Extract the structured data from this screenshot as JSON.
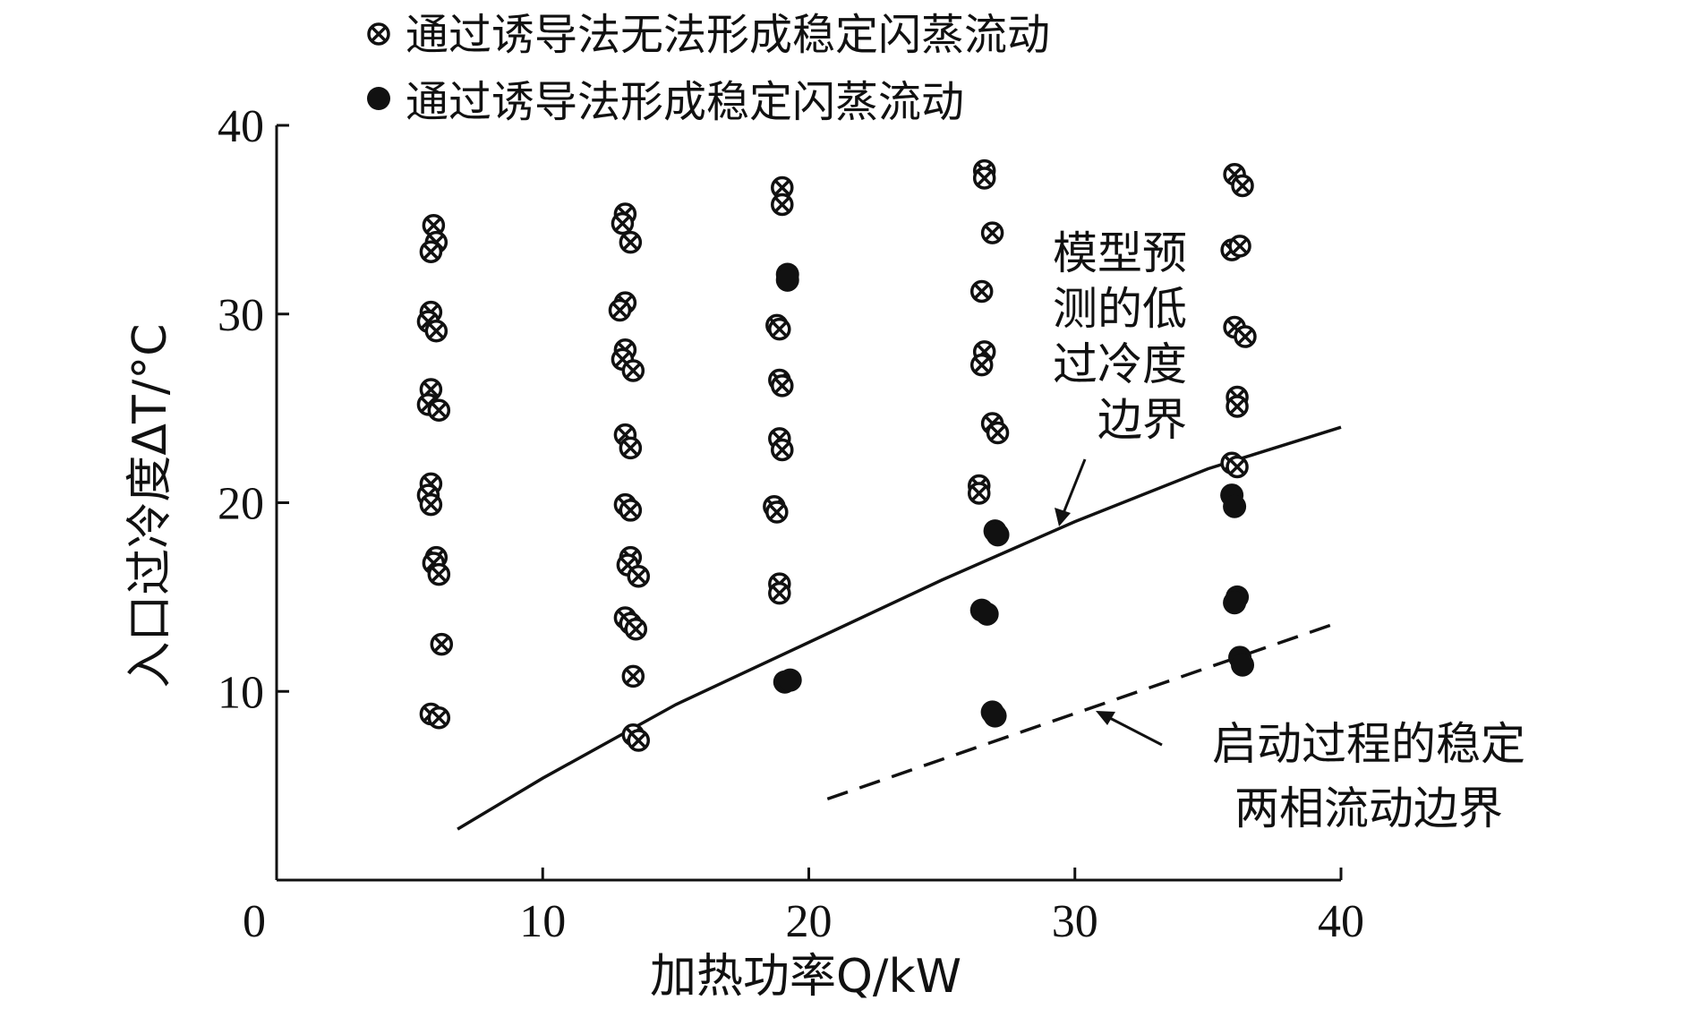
{
  "chart_data": {
    "type": "scatter",
    "xlabel": "加热功率Q/kW",
    "ylabel": "入口过冷度ΔT/°C",
    "xlim": [
      0,
      40
    ],
    "ylim": [
      0,
      40
    ],
    "xticks": [
      "0",
      "10",
      "20",
      "30",
      "40"
    ],
    "yticks": [
      "10",
      "20",
      "30",
      "40"
    ],
    "grid": false,
    "legend_position": "top",
    "series": [
      {
        "name": "通过诱导法无法形成稳定闪蒸流动",
        "marker": "circle-x",
        "points": [
          [
            5.9,
            34.7
          ],
          [
            6.0,
            33.8
          ],
          [
            5.8,
            33.3
          ],
          [
            5.8,
            30.1
          ],
          [
            5.7,
            29.6
          ],
          [
            6.0,
            29.1
          ],
          [
            5.8,
            26.0
          ],
          [
            5.7,
            25.2
          ],
          [
            6.1,
            24.9
          ],
          [
            5.8,
            21.0
          ],
          [
            5.7,
            20.4
          ],
          [
            5.8,
            19.9
          ],
          [
            6.0,
            17.1
          ],
          [
            5.9,
            16.8
          ],
          [
            6.1,
            16.2
          ],
          [
            6.2,
            12.5
          ],
          [
            5.8,
            8.8
          ],
          [
            6.1,
            8.6
          ],
          [
            13.1,
            35.3
          ],
          [
            13.0,
            34.8
          ],
          [
            13.3,
            33.8
          ],
          [
            13.1,
            30.6
          ],
          [
            12.9,
            30.2
          ],
          [
            13.1,
            28.1
          ],
          [
            13.0,
            27.6
          ],
          [
            13.4,
            27.0
          ],
          [
            13.1,
            23.6
          ],
          [
            13.3,
            22.9
          ],
          [
            13.1,
            19.9
          ],
          [
            13.3,
            19.6
          ],
          [
            13.3,
            17.1
          ],
          [
            13.2,
            16.7
          ],
          [
            13.6,
            16.1
          ],
          [
            13.1,
            13.9
          ],
          [
            13.3,
            13.6
          ],
          [
            13.5,
            13.3
          ],
          [
            13.4,
            10.8
          ],
          [
            13.4,
            7.7
          ],
          [
            13.6,
            7.4
          ],
          [
            19.0,
            36.7
          ],
          [
            19.0,
            35.8
          ],
          [
            18.8,
            29.4
          ],
          [
            18.9,
            29.2
          ],
          [
            18.9,
            26.5
          ],
          [
            19.0,
            26.2
          ],
          [
            18.9,
            23.4
          ],
          [
            19.0,
            22.8
          ],
          [
            18.7,
            19.8
          ],
          [
            18.8,
            19.5
          ],
          [
            18.9,
            15.7
          ],
          [
            18.9,
            15.2
          ],
          [
            26.6,
            37.6
          ],
          [
            26.6,
            37.2
          ],
          [
            26.9,
            34.3
          ],
          [
            26.5,
            31.2
          ],
          [
            26.6,
            28.0
          ],
          [
            26.5,
            27.3
          ],
          [
            26.9,
            24.2
          ],
          [
            27.1,
            23.7
          ],
          [
            26.4,
            20.9
          ],
          [
            26.4,
            20.5
          ],
          [
            36.0,
            37.4
          ],
          [
            36.3,
            36.8
          ],
          [
            35.9,
            33.4
          ],
          [
            36.2,
            33.6
          ],
          [
            36.0,
            29.3
          ],
          [
            36.4,
            28.8
          ],
          [
            36.1,
            25.6
          ],
          [
            36.1,
            25.1
          ],
          [
            35.9,
            22.1
          ],
          [
            36.1,
            21.9
          ]
        ]
      },
      {
        "name": "通过诱导法形成稳定闪蒸流动",
        "marker": "filled-circle",
        "points": [
          [
            19.2,
            32.1
          ],
          [
            19.2,
            31.8
          ],
          [
            19.1,
            10.5
          ],
          [
            19.3,
            10.6
          ],
          [
            27.0,
            18.5
          ],
          [
            27.1,
            18.3
          ],
          [
            26.5,
            14.3
          ],
          [
            26.7,
            14.1
          ],
          [
            26.9,
            8.9
          ],
          [
            27.0,
            8.7
          ],
          [
            35.9,
            20.4
          ],
          [
            36.0,
            19.8
          ],
          [
            36.1,
            15.0
          ],
          [
            36.0,
            14.7
          ],
          [
            36.2,
            11.8
          ],
          [
            36.3,
            11.4
          ]
        ]
      }
    ],
    "curves": [
      {
        "label": "模型预测的低过冷度边界",
        "style": "solid",
        "points": [
          [
            6.8,
            2.7
          ],
          [
            10,
            5.4
          ],
          [
            15,
            9.3
          ],
          [
            20,
            12.6
          ],
          [
            25,
            15.9
          ],
          [
            30,
            19.0
          ],
          [
            35,
            21.8
          ],
          [
            40,
            24.0
          ]
        ]
      },
      {
        "label": "启动过程的稳定两相流动边界",
        "style": "dashed",
        "points": [
          [
            20.7,
            4.3
          ],
          [
            40,
            13.7
          ]
        ]
      }
    ],
    "annotations": {
      "model_boundary": {
        "text": [
          "模型预",
          "测的低",
          "过冷度",
          "边界"
        ],
        "arrow_to": [
          29.8,
          19.1
        ]
      },
      "startup_boundary": {
        "text": [
          "启动过程的稳定",
          "两相流动边界"
        ],
        "arrow_to": [
          30.9,
          9.5
        ]
      }
    }
  }
}
